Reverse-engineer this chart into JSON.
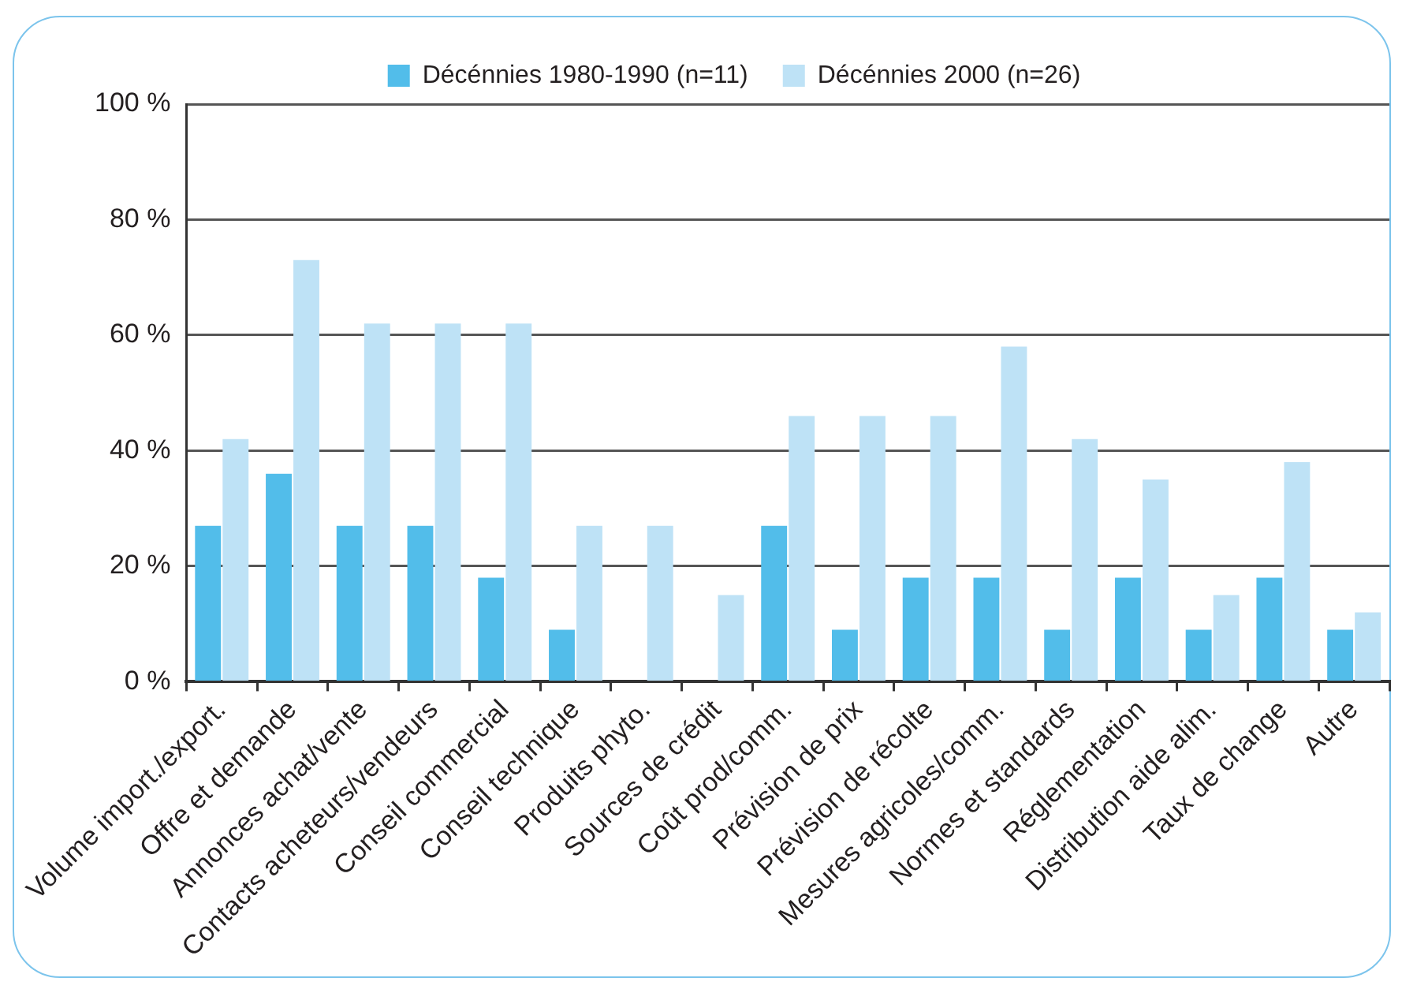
{
  "chart_data": {
    "type": "bar",
    "categories": [
      "Volume import./export.",
      "Offre et demande",
      "Annonces achat/vente",
      "Contacts acheteurs/vendeurs",
      "Conseil commercial",
      "Conseil technique",
      "Produits phyto.",
      "Sources de crédit",
      "Coût prod/comm.",
      "Prévision de prix",
      "Prévision de récolte",
      "Mesures agricoles/comm.",
      "Normes et standards",
      "Réglementation",
      "Distribution aide alim.",
      "Taux de change",
      "Autre"
    ],
    "series": [
      {
        "name": "Décénnies 1980-1990 (n=11)",
        "color": "#52bdea",
        "values": [
          27,
          36,
          27,
          27,
          18,
          9,
          0,
          0,
          27,
          9,
          18,
          18,
          9,
          18,
          9,
          18,
          9
        ]
      },
      {
        "name": "Décénnies 2000 (n=26)",
        "color": "#bee2f6",
        "values": [
          42,
          73,
          62,
          62,
          62,
          27,
          27,
          15,
          46,
          46,
          46,
          58,
          42,
          35,
          15,
          38,
          12
        ]
      }
    ],
    "ylim": [
      0,
      100
    ],
    "yticks": [
      {
        "value": 0,
        "label": "0 %"
      },
      {
        "value": 20,
        "label": "20 %"
      },
      {
        "value": 40,
        "label": "40 %"
      },
      {
        "value": 60,
        "label": "60 %"
      },
      {
        "value": 80,
        "label": "80 %"
      },
      {
        "value": 100,
        "label": "100 %"
      }
    ],
    "grid": "y",
    "legend": "top"
  }
}
